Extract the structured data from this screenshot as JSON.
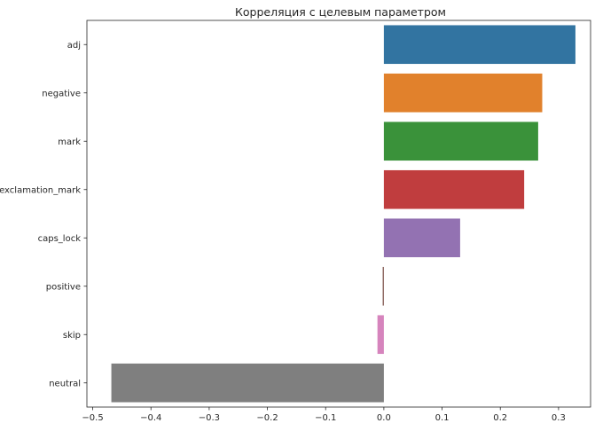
{
  "chart_data": {
    "type": "bar",
    "orientation": "horizontal",
    "title": "Корреляция с целевым параметром",
    "xlabel": "",
    "ylabel": "",
    "categories": [
      "adj",
      "negative",
      "mark",
      "exclamation_mark",
      "caps_lock",
      "positive",
      "skip",
      "neutral"
    ],
    "values": [
      0.329,
      0.272,
      0.265,
      0.241,
      0.131,
      -0.002,
      -0.011,
      -0.468
    ],
    "colors": [
      "#3274a1",
      "#e1812c",
      "#3a923a",
      "#c03d3e",
      "#9372b2",
      "#845b53",
      "#d684bd",
      "#7f7f7f"
    ],
    "xlim": [
      -0.51,
      0.355
    ],
    "xticks": [
      -0.5,
      -0.4,
      -0.3,
      -0.2,
      -0.1,
      0.0,
      0.1,
      0.2,
      0.3
    ],
    "xtick_labels": [
      "−0.5",
      "−0.4",
      "−0.3",
      "−0.2",
      "−0.1",
      "0.0",
      "0.1",
      "0.2",
      "0.3"
    ],
    "grid": false,
    "legend": "none"
  }
}
